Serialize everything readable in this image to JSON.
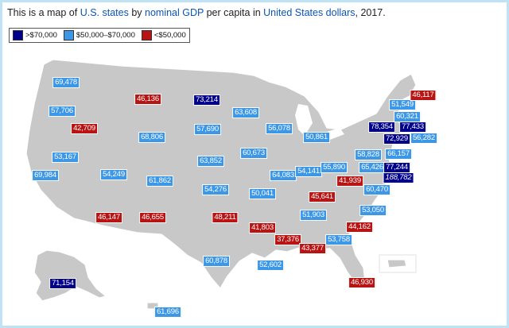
{
  "caption": {
    "prefix": "This is a map of ",
    "link_states": "U.S. states",
    "middle1": " by ",
    "link_gdp": "nominal GDP",
    "middle2": " per capita in ",
    "link_usd": "United States dollars",
    "suffix": ", 2017."
  },
  "colors": {
    "high": "#00008b",
    "mid": "#3c97e6",
    "low": "#b81414",
    "land": "#c8c8c8",
    "link": "#0b55b5"
  },
  "legend": [
    {
      "label": ">$70,000",
      "tier": "high"
    },
    {
      "label": "$50,000–$70,000",
      "tier": "mid"
    },
    {
      "label": "<$50,000",
      "tier": "low"
    }
  ],
  "states": [
    {
      "id": "WA",
      "value": "69,478",
      "tier": "mid"
    },
    {
      "id": "OR",
      "value": "57,706",
      "tier": "mid"
    },
    {
      "id": "CA",
      "value": "69,984",
      "tier": "mid"
    },
    {
      "id": "NV",
      "value": "53,167",
      "tier": "mid"
    },
    {
      "id": "ID",
      "value": "42,709",
      "tier": "low"
    },
    {
      "id": "MT",
      "value": "46,136",
      "tier": "low"
    },
    {
      "id": "WY",
      "value": "68,806",
      "tier": "mid"
    },
    {
      "id": "UT",
      "value": "54,249",
      "tier": "mid"
    },
    {
      "id": "AZ",
      "value": "46,147",
      "tier": "low"
    },
    {
      "id": "CO",
      "value": "61,862",
      "tier": "mid"
    },
    {
      "id": "NM",
      "value": "46,655",
      "tier": "low"
    },
    {
      "id": "ND",
      "value": "73,214",
      "tier": "high"
    },
    {
      "id": "SD",
      "value": "57,690",
      "tier": "mid"
    },
    {
      "id": "NE",
      "value": "63,852",
      "tier": "mid"
    },
    {
      "id": "KS",
      "value": "54,276",
      "tier": "mid"
    },
    {
      "id": "OK",
      "value": "48,211",
      "tier": "low"
    },
    {
      "id": "TX",
      "value": "60,878",
      "tier": "mid"
    },
    {
      "id": "MN",
      "value": "63,608",
      "tier": "mid"
    },
    {
      "id": "IA",
      "value": "60,673",
      "tier": "mid"
    },
    {
      "id": "MO",
      "value": "50,041",
      "tier": "mid"
    },
    {
      "id": "AR",
      "value": "41,803",
      "tier": "low"
    },
    {
      "id": "LA",
      "value": "52,602",
      "tier": "mid"
    },
    {
      "id": "WI",
      "value": "56,078",
      "tier": "mid"
    },
    {
      "id": "IL",
      "value": "64,083",
      "tier": "mid"
    },
    {
      "id": "MI",
      "value": "50,861",
      "tier": "mid"
    },
    {
      "id": "IN",
      "value": "54,141",
      "tier": "mid"
    },
    {
      "id": "OH",
      "value": "55,890",
      "tier": "mid"
    },
    {
      "id": "KY",
      "value": "45,641",
      "tier": "low"
    },
    {
      "id": "TN",
      "value": "51,903",
      "tier": "mid"
    },
    {
      "id": "MS",
      "value": "37,376",
      "tier": "low"
    },
    {
      "id": "AL",
      "value": "43,377",
      "tier": "low"
    },
    {
      "id": "GA",
      "value": "53,758",
      "tier": "mid"
    },
    {
      "id": "FL",
      "value": "46,930",
      "tier": "low"
    },
    {
      "id": "SC",
      "value": "44,162",
      "tier": "low"
    },
    {
      "id": "NC",
      "value": "53,050",
      "tier": "mid"
    },
    {
      "id": "VA",
      "value": "60,470",
      "tier": "mid"
    },
    {
      "id": "WV",
      "value": "41,939",
      "tier": "low"
    },
    {
      "id": "PA",
      "value": "58,828",
      "tier": "mid"
    },
    {
      "id": "MD",
      "value": "65,426",
      "tier": "mid"
    },
    {
      "id": "DE",
      "value": "77,244",
      "tier": "high"
    },
    {
      "id": "DC",
      "value": "188,782",
      "tier": "high"
    },
    {
      "id": "NJ",
      "value": "66,157",
      "tier": "mid"
    },
    {
      "id": "NY",
      "value": "78,354",
      "tier": "high"
    },
    {
      "id": "CT",
      "value": "72,929",
      "tier": "high"
    },
    {
      "id": "RI",
      "value": "56,282",
      "tier": "mid"
    },
    {
      "id": "MA",
      "value": "77,433",
      "tier": "high"
    },
    {
      "id": "VT",
      "value": "60,321",
      "tier": "mid"
    },
    {
      "id": "NH",
      "value": "51,549",
      "tier": "mid"
    },
    {
      "id": "ME",
      "value": "46,117",
      "tier": "low"
    },
    {
      "id": "AK",
      "value": "71,154",
      "tier": "high"
    },
    {
      "id": "HI",
      "value": "61,696",
      "tier": "mid"
    }
  ]
}
